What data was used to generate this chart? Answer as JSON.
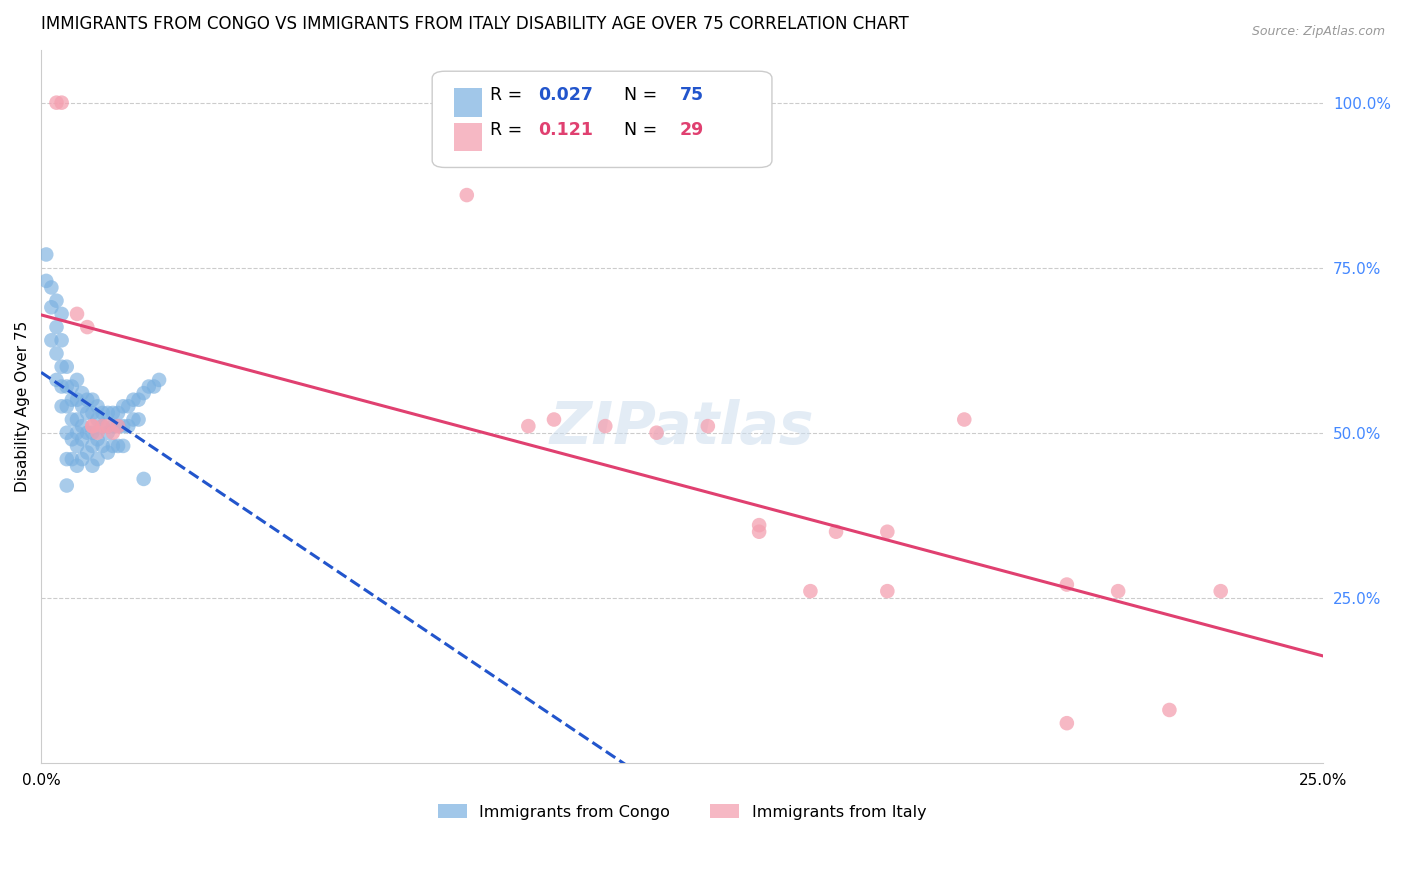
{
  "title": "IMMIGRANTS FROM CONGO VS IMMIGRANTS FROM ITALY DISABILITY AGE OVER 75 CORRELATION CHART",
  "source": "Source: ZipAtlas.com",
  "ylabel": "Disability Age Over 75",
  "right_yticks": [
    "100.0%",
    "75.0%",
    "50.0%",
    "25.0%"
  ],
  "right_ytick_vals": [
    1.0,
    0.75,
    0.5,
    0.25
  ],
  "xlim": [
    0.0,
    0.25
  ],
  "ylim": [
    0.0,
    1.08
  ],
  "congo_color": "#7ab0e0",
  "italy_color": "#f4a0b0",
  "congo_line_color": "#2255cc",
  "italy_line_color": "#e04070",
  "background_color": "#ffffff",
  "grid_color": "#cccccc",
  "right_axis_color": "#4488ff",
  "title_fontsize": 12,
  "label_fontsize": 11,
  "tick_fontsize": 11,
  "congo_x": [
    0.001,
    0.002,
    0.002,
    0.003,
    0.003,
    0.003,
    0.004,
    0.004,
    0.004,
    0.004,
    0.005,
    0.005,
    0.005,
    0.005,
    0.005,
    0.006,
    0.006,
    0.006,
    0.006,
    0.006,
    0.007,
    0.007,
    0.007,
    0.007,
    0.007,
    0.007,
    0.008,
    0.008,
    0.008,
    0.008,
    0.008,
    0.009,
    0.009,
    0.009,
    0.009,
    0.01,
    0.01,
    0.01,
    0.01,
    0.01,
    0.011,
    0.011,
    0.011,
    0.011,
    0.012,
    0.012,
    0.012,
    0.013,
    0.013,
    0.013,
    0.014,
    0.014,
    0.014,
    0.015,
    0.015,
    0.015,
    0.016,
    0.016,
    0.016,
    0.017,
    0.017,
    0.018,
    0.018,
    0.019,
    0.019,
    0.02,
    0.02,
    0.021,
    0.022,
    0.023,
    0.001,
    0.002,
    0.003,
    0.004,
    0.005
  ],
  "congo_y": [
    0.77,
    0.69,
    0.64,
    0.66,
    0.62,
    0.58,
    0.64,
    0.6,
    0.57,
    0.54,
    0.6,
    0.57,
    0.54,
    0.5,
    0.46,
    0.57,
    0.55,
    0.52,
    0.49,
    0.46,
    0.58,
    0.55,
    0.52,
    0.5,
    0.48,
    0.45,
    0.56,
    0.54,
    0.51,
    0.49,
    0.46,
    0.55,
    0.53,
    0.5,
    0.47,
    0.55,
    0.53,
    0.5,
    0.48,
    0.45,
    0.54,
    0.52,
    0.49,
    0.46,
    0.53,
    0.51,
    0.48,
    0.53,
    0.5,
    0.47,
    0.53,
    0.51,
    0.48,
    0.53,
    0.51,
    0.48,
    0.54,
    0.51,
    0.48,
    0.54,
    0.51,
    0.55,
    0.52,
    0.55,
    0.52,
    0.56,
    0.43,
    0.57,
    0.57,
    0.58,
    0.73,
    0.72,
    0.7,
    0.68,
    0.42
  ],
  "italy_x": [
    0.003,
    0.004,
    0.007,
    0.009,
    0.01,
    0.01,
    0.011,
    0.012,
    0.013,
    0.014,
    0.015,
    0.083,
    0.095,
    0.11,
    0.12,
    0.13,
    0.14,
    0.15,
    0.155,
    0.165,
    0.18,
    0.2,
    0.21,
    0.22,
    0.23,
    0.165,
    0.14,
    0.2,
    0.1
  ],
  "italy_y": [
    1.0,
    1.0,
    0.68,
    0.66,
    0.51,
    0.51,
    0.5,
    0.51,
    0.51,
    0.5,
    0.51,
    0.86,
    0.51,
    0.51,
    0.5,
    0.51,
    0.36,
    0.26,
    0.35,
    0.35,
    0.52,
    0.27,
    0.26,
    0.08,
    0.26,
    0.26,
    0.35,
    0.06,
    0.52
  ]
}
